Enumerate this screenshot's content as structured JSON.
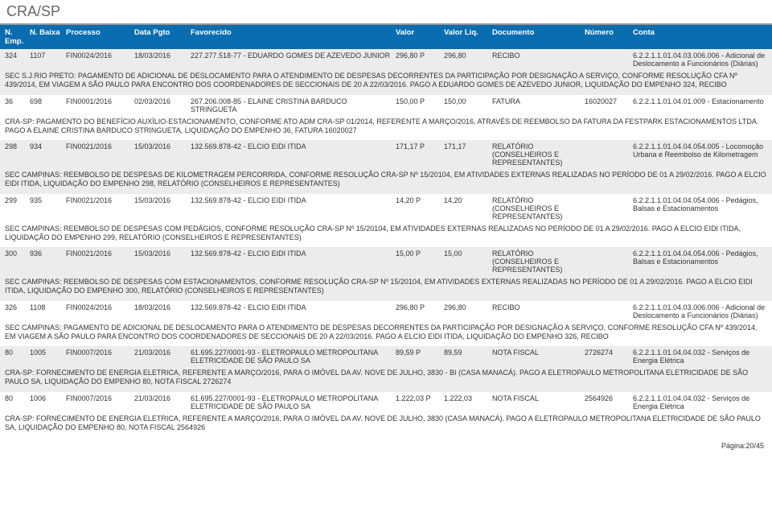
{
  "header": {
    "title": "CRA/SP"
  },
  "columns": {
    "emp": "N. Emp.",
    "baixa": "N. Baixa",
    "proc": "Processo",
    "data": "Data Pgto",
    "fav": "Favorecido",
    "valor": "Valor",
    "valliq": "Valor Liq.",
    "doc": "Documento",
    "num": "Número",
    "conta": "Conta"
  },
  "rows": [
    {
      "alt": true,
      "emp": "324",
      "baixa": "1107",
      "proc": "FIN0024/2016",
      "data": "18/03/2016",
      "fav": "227.277.518-77 - EDUARDO GOMES DE AZEVEDO JUNIOR",
      "valor": "296,80 P",
      "valliq": "296,80",
      "doc": "RECIBO",
      "num": "",
      "conta": "6.2.2.1.1.01.04.03.006.006 - Adicional de Deslocamento a Funcionários (Diárias)",
      "desc": "SEC S.J.RIO PRETO: PAGAMENTO DE ADICIONAL DE DESLOCAMENTO PARA O ATENDIMENTO DE DESPESAS DECORRENTES DA PARTICIPAÇÃO POR DESIGNAÇÃO A SERVIÇO, CONFORME RESOLUÇÃO CFA Nº 439/2014, EM VIAGEM A SÃO PAULO PARA ENCONTRO DOS COORDENADORES DE SECCIONAIS DE 20 A 22/03/2016. PAGO A EDUARDO GOMES DE AZEVEDO JUNIOR, LIQUIDAÇÃO DO EMPENHO 324, RECIBO"
    },
    {
      "alt": false,
      "emp": "36",
      "baixa": "698",
      "proc": "FIN0001/2016",
      "data": "02/03/2016",
      "fav": "267.206.008-85 - ELAINE CRISTINA BARDUCO STRINGUETA",
      "valor": "150,00 P",
      "valliq": "150,00",
      "doc": "FATURA",
      "num": "16020027",
      "conta": "6.2.2.1.1.01.04.01.009 - Estacionamento",
      "desc": "CRA-SP: PAGAMENTO DO BENEFÍCIO AUXÍLIO-ESTACIONAMENTO, CONFORME ATO ADM CRA-SP 01/2014, REFERENTE A MARÇO/2016, ATRAVÉS DE REEMBOLSO DA FATURA DA FESTPARK ESTACIONAMENTOS LTDA. PAGO A ELAINE CRISTINA BARDUCO STRINGUETA, LIQUIDAÇÃO DO EMPENHO 36, FATURA 16020027"
    },
    {
      "alt": true,
      "emp": "298",
      "baixa": "934",
      "proc": "FIN0021/2016",
      "data": "15/03/2016",
      "fav": "132.569.878-42 - ELCIO EIDI ITIDA",
      "valor": "171,17 P",
      "valliq": "171,17",
      "doc": "RELATÓRIO (CONSELHEIROS E REPRESENTANTES)",
      "num": "",
      "conta": "6.2.2.1.1.01.04.04.054.005 - Locomoção Urbana e Reembolso de Kilometragem",
      "desc": "SEC CAMPINAS: REEMBOLSO DE DESPESAS DE KILOMETRAGEM PERCORRIDA, CONFORME RESOLUÇÃO CRA-SP Nº 15/20104, EM ATIVIDADES EXTERNAS REALIZADAS NO PERÍODO DE 01 A 29/02/2016. PAGO A ELCIO EIDI ITIDA, LIQUIDAÇÃO DO EMPENHO 298, RELATÓRIO (CONSELHEIROS E REPRESENTANTES)"
    },
    {
      "alt": false,
      "emp": "299",
      "baixa": "935",
      "proc": "FIN0021/2016",
      "data": "15/03/2016",
      "fav": "132.569.878-42 - ELCIO EIDI ITIDA",
      "valor": "14,20 P",
      "valliq": "14,20",
      "doc": "RELATÓRIO (CONSELHEIROS E REPRESENTANTES)",
      "num": "",
      "conta": "6.2.2.1.1.01.04.04.054.006 - Pedágios, Balsas e Estacionamentos",
      "desc": "SEC CAMPINAS: REEMBOLSO DE DESPESAS COM PEDÁGIOS, CONFORME RESOLUÇÃO CRA-SP Nº 15/20104, EM ATIVIDADES EXTERNAS REALIZADAS NO PERÍODO DE 01 A 29/02/2016. PAGO A ELCIO EIDI ITIDA, LIQUIDAÇÃO DO EMPENHO 299, RELATÓRIO (CONSELHEIROS E REPRESENTANTES)"
    },
    {
      "alt": true,
      "emp": "300",
      "baixa": "936",
      "proc": "FIN0021/2016",
      "data": "15/03/2016",
      "fav": "132.569.878-42 - ELCIO EIDI ITIDA",
      "valor": "15,00 P",
      "valliq": "15,00",
      "doc": "RELATÓRIO (CONSELHEIROS E REPRESENTANTES)",
      "num": "",
      "conta": "6.2.2.1.1.01.04.04.054.006 - Pedágios, Balsas e Estacionamentos",
      "desc": "SEC CAMPINAS: REEMBOLSO DE DESPESAS COM ESTACIONAMENTOS, CONFORME RESOLUÇÃO CRA-SP Nº 15/20104, EM ATIVIDADES EXTERNAS REALIZADAS NO PERÍODO DE 01 A 29/02/2016. PAGO A ELCIO EIDI ITIDA, LIQUIDAÇÃO DO EMPENHO 300, RELATÓRIO (CONSELHEIROS E REPRESENTANTES)"
    },
    {
      "alt": false,
      "emp": "326",
      "baixa": "1108",
      "proc": "FIN0024/2016",
      "data": "18/03/2016",
      "fav": "132.569.878-42 - ELCIO EIDI ITIDA",
      "valor": "296,80 P",
      "valliq": "296,80",
      "doc": "RECIBO",
      "num": "",
      "conta": "6.2.2.1.1.01.04.03.006.006 - Adicional de Deslocamento a Funcionários (Diárias)",
      "desc": "SEC CAMPINAS: PAGAMENTO DE ADICIONAL DE DESLOCAMENTO PARA O ATENDIMENTO DE DESPESAS DECORRENTES DA PARTICIPAÇÃO POR DESIGNAÇÃO A SERVIÇO, CONFORME RESOLUÇÃO CFA Nº 439/2014, EM VIAGEM A SÃO PAULO PARA ENCONTRO DOS COORDENADORES DE SECCIONAIS DE 20 A 22/03/2016. PAGO A ELCIO EIDI ITIDA, LIQUIDAÇÃO DO EMPENHO 326, RECIBO"
    },
    {
      "alt": true,
      "emp": "80",
      "baixa": "1005",
      "proc": "FIN0007/2016",
      "data": "21/03/2016",
      "fav": "61.695.227/0001-93 - ELETROPAULO METROPOLITANA ELETRICIDADE DE SÃO PAULO SA",
      "valor": "89,59 P",
      "valliq": "89,59",
      "doc": "NOTA FISCAL",
      "num": "2726274",
      "conta": "6.2.2.1.1.01.04.04.032 - Serviços de Energia Elétrica",
      "desc": "CRA-SP: FORNECIMENTO DE ENERGIA ELETRICA, REFERENTE A MARÇO/2016, PARA O IMÓVEL DA AV. NOVE DE JULHO, 3830 - BI (CASA MANACÁ). PAGO A ELETROPAULO METROPOLITANA ELETRICIDADE DE SÃO PAULO SA, LIQUIDAÇÃO DO EMPENHO 80, NOTA FISCAL 2726274"
    },
    {
      "alt": false,
      "emp": "80",
      "baixa": "1006",
      "proc": "FIN0007/2016",
      "data": "21/03/2016",
      "fav": "61.695.227/0001-93 - ELETROPAULO METROPOLITANA ELETRICIDADE DE SÃO PAULO SA",
      "valor": "1.222,03 P",
      "valliq": "1.222,03",
      "doc": "NOTA FISCAL",
      "num": "2564926",
      "conta": "6.2.2.1.1.01.04.04.032 - Serviços de Energia Elétrica",
      "desc": "CRA-SP: FORNECIMENTO DE ENERGIA ELETRICA, REFERENTE A MARÇO/2016, PARA O IMÓVEL DA AV. NOVE DE JULHO, 3830 (CASA MANACÁ). PAGO A ELETROPAULO METROPOLITANA ELETRICIDADE DE SÃO PAULO SA, LIQUIDAÇÃO DO EMPENHO 80, NOTA FISCAL 2564926"
    }
  ],
  "footer": {
    "page": "Página:20/45"
  }
}
